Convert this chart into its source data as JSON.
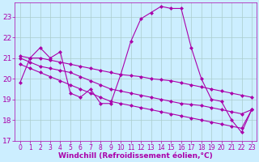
{
  "xlabel": "Windchill (Refroidissement éolien,°C)",
  "background_color": "#cceeff",
  "grid_color": "#aacccc",
  "line_color": "#aa00aa",
  "hours": [
    0,
    1,
    2,
    3,
    4,
    5,
    6,
    7,
    8,
    9,
    10,
    11,
    12,
    13,
    14,
    15,
    16,
    17,
    18,
    19,
    20,
    21,
    22,
    23
  ],
  "windchill": [
    19.8,
    21.0,
    21.5,
    21.0,
    21.3,
    19.3,
    19.1,
    19.5,
    18.8,
    18.8,
    20.2,
    21.8,
    22.9,
    23.2,
    23.5,
    23.4,
    23.4,
    21.5,
    20.0,
    19.0,
    18.9,
    18.0,
    17.4,
    18.5
  ],
  "trend1": [
    21.1,
    21.0,
    21.0,
    20.9,
    20.8,
    20.7,
    20.6,
    20.5,
    20.4,
    20.3,
    20.2,
    20.15,
    20.1,
    20.0,
    19.95,
    19.9,
    19.8,
    19.7,
    19.6,
    19.5,
    19.4,
    19.3,
    19.2,
    19.1
  ],
  "trend2": [
    21.0,
    20.8,
    20.6,
    20.5,
    20.4,
    20.3,
    20.1,
    19.9,
    19.7,
    19.5,
    19.4,
    19.3,
    19.2,
    19.1,
    19.0,
    18.9,
    18.8,
    18.75,
    18.7,
    18.6,
    18.5,
    18.4,
    18.3,
    18.5
  ],
  "trend3": [
    20.7,
    20.5,
    20.3,
    20.1,
    19.9,
    19.7,
    19.5,
    19.3,
    19.1,
    18.9,
    18.8,
    18.7,
    18.6,
    18.5,
    18.4,
    18.3,
    18.2,
    18.1,
    18.0,
    17.9,
    17.8,
    17.7,
    17.6,
    18.5
  ],
  "ylim": [
    17.0,
    23.7
  ],
  "yticks": [
    17,
    18,
    19,
    20,
    21,
    22,
    23
  ],
  "xticks": [
    0,
    1,
    2,
    3,
    4,
    5,
    6,
    7,
    8,
    9,
    10,
    11,
    12,
    13,
    14,
    15,
    16,
    17,
    18,
    19,
    20,
    21,
    22,
    23
  ],
  "marker": "D",
  "markersize": 2.5,
  "linewidth": 0.8,
  "line_color2": "#bb00bb",
  "xlabel_fontsize": 6.5,
  "ytick_fontsize": 6.5,
  "xtick_fontsize": 5.5
}
